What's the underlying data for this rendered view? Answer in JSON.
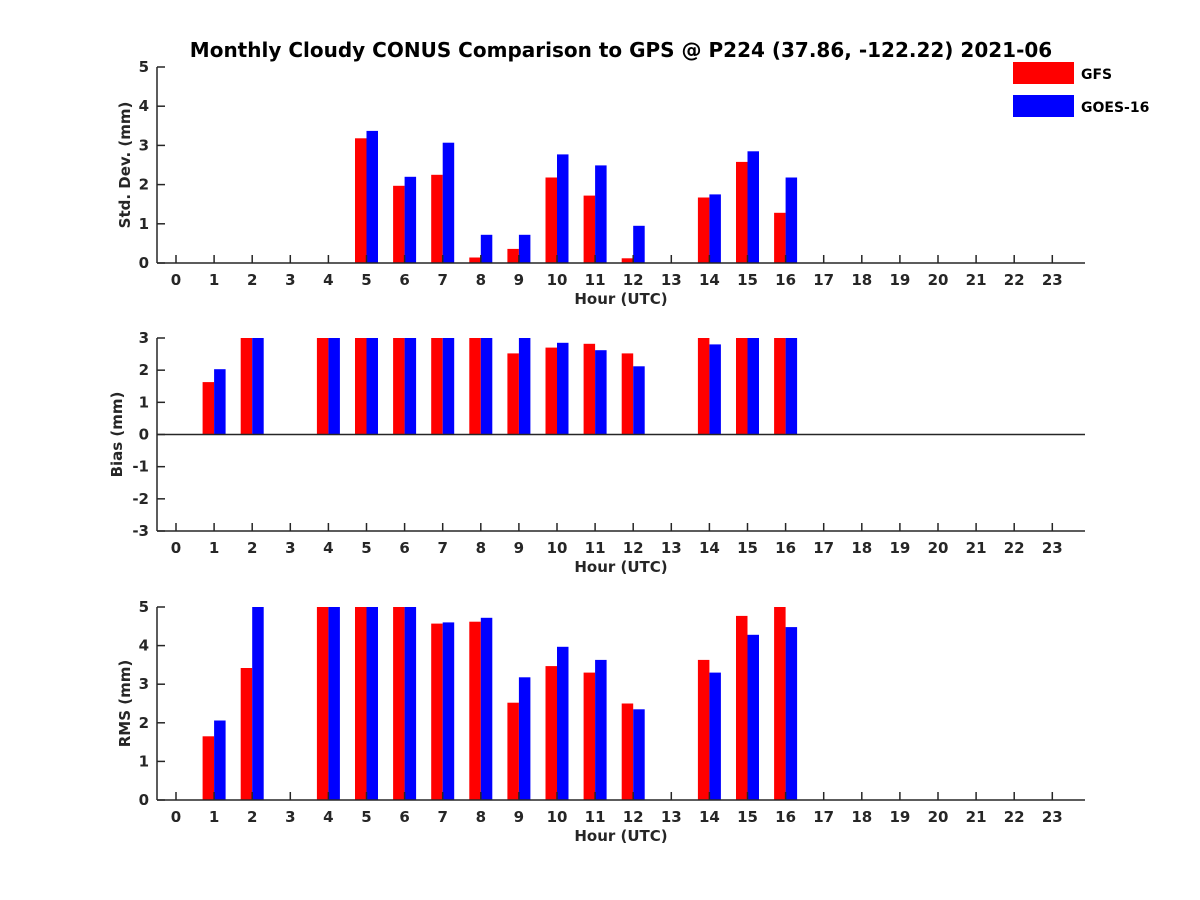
{
  "chart_data": {
    "type": "bar",
    "title": "Monthly Cloudy CONUS Comparison to GPS @ P224 (37.86, -122.22) 2021-06",
    "legend": {
      "placement": "top-right",
      "entries": [
        {
          "name": "GFS",
          "color": "#ff0000"
        },
        {
          "name": "GOES-16",
          "color": "#0000ff"
        }
      ]
    },
    "panels": [
      {
        "id": "std",
        "ylabel": "Std. Dev. (mm)",
        "xlabel": "Hour (UTC)",
        "ylim": [
          0,
          5
        ],
        "yticks": [
          "0",
          "1",
          "2",
          "3",
          "4",
          "5"
        ],
        "categories": [
          "0",
          "1",
          "2",
          "3",
          "4",
          "5",
          "6",
          "7",
          "8",
          "9",
          "10",
          "11",
          "12",
          "13",
          "14",
          "15",
          "16",
          "17",
          "18",
          "19",
          "20",
          "21",
          "22",
          "23"
        ],
        "series": [
          {
            "name": "GFS",
            "color": "#ff0000",
            "values": [
              null,
              null,
              null,
              null,
              null,
              3.18,
              1.97,
              2.25,
              0.14,
              0.36,
              2.18,
              1.72,
              0.12,
              null,
              1.67,
              2.58,
              1.28,
              null,
              null,
              null,
              null,
              null,
              null,
              null
            ]
          },
          {
            "name": "GOES-16",
            "color": "#0000ff",
            "values": [
              null,
              null,
              null,
              null,
              null,
              3.37,
              2.2,
              3.07,
              0.72,
              0.72,
              2.77,
              2.49,
              0.95,
              null,
              1.75,
              2.85,
              2.18,
              null,
              null,
              null,
              null,
              null,
              null,
              null
            ]
          }
        ]
      },
      {
        "id": "bias",
        "ylabel": "Bias (mm)",
        "xlabel": "Hour (UTC)",
        "ylim": [
          -3,
          3
        ],
        "yticks": [
          "-3",
          "-2",
          "-1",
          "0",
          "1",
          "2",
          "3"
        ],
        "categories": [
          "0",
          "1",
          "2",
          "3",
          "4",
          "5",
          "6",
          "7",
          "8",
          "9",
          "10",
          "11",
          "12",
          "13",
          "14",
          "15",
          "16",
          "17",
          "18",
          "19",
          "20",
          "21",
          "22",
          "23"
        ],
        "series": [
          {
            "name": "GFS",
            "color": "#ff0000",
            "values": [
              null,
              1.63,
              3.0,
              null,
              3.0,
              3.0,
              3.0,
              3.0,
              3.0,
              2.52,
              2.7,
              2.82,
              2.52,
              null,
              3.0,
              3.0,
              3.0,
              null,
              null,
              null,
              null,
              null,
              null,
              null
            ]
          },
          {
            "name": "GOES-16",
            "color": "#0000ff",
            "values": [
              null,
              2.03,
              3.0,
              null,
              3.0,
              3.0,
              3.0,
              3.0,
              3.0,
              3.0,
              2.85,
              2.62,
              2.12,
              null,
              2.8,
              3.0,
              3.0,
              null,
              null,
              null,
              null,
              null,
              null,
              null
            ]
          }
        ]
      },
      {
        "id": "rms",
        "ylabel": "RMS (mm)",
        "xlabel": "Hour (UTC)",
        "ylim": [
          0,
          5
        ],
        "yticks": [
          "0",
          "1",
          "2",
          "3",
          "4",
          "5"
        ],
        "categories": [
          "0",
          "1",
          "2",
          "3",
          "4",
          "5",
          "6",
          "7",
          "8",
          "9",
          "10",
          "11",
          "12",
          "13",
          "14",
          "15",
          "16",
          "17",
          "18",
          "19",
          "20",
          "21",
          "22",
          "23"
        ],
        "series": [
          {
            "name": "GFS",
            "color": "#ff0000",
            "values": [
              null,
              1.65,
              3.42,
              null,
              5.0,
              5.0,
              5.0,
              4.57,
              4.62,
              2.52,
              3.47,
              3.3,
              2.5,
              null,
              3.63,
              4.77,
              5.0,
              null,
              null,
              null,
              null,
              null,
              null,
              null
            ]
          },
          {
            "name": "GOES-16",
            "color": "#0000ff",
            "values": [
              null,
              2.06,
              5.0,
              null,
              5.0,
              5.0,
              5.0,
              4.6,
              4.72,
              3.18,
              3.97,
              3.63,
              2.35,
              null,
              3.3,
              4.28,
              4.48,
              null,
              null,
              null,
              null,
              null,
              null,
              null
            ]
          }
        ]
      }
    ]
  }
}
